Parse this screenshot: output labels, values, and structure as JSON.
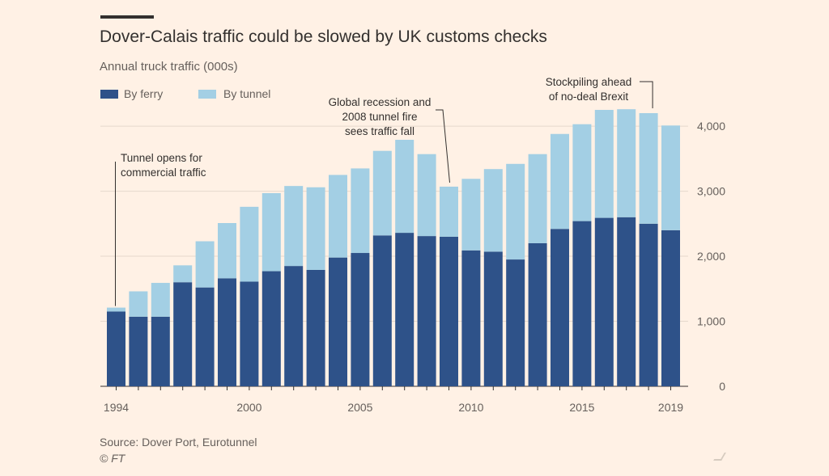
{
  "header": {
    "title": "Dover-Calais traffic could be slowed by UK customs checks",
    "subtitle": "Annual truck traffic (000s)"
  },
  "footer": {
    "source": "Source: Dover Port, Eurotunnel",
    "credit": "© FT"
  },
  "colors": {
    "background": "#fff1e5",
    "ferry": "#2e5289",
    "tunnel": "#a3cfe4",
    "text": "#33302e",
    "grid": "#e5d8cc"
  },
  "chart_data": {
    "type": "bar",
    "stacked": true,
    "ylim": [
      0,
      4200
    ],
    "yticks": [
      0,
      1000,
      2000,
      3000,
      4000
    ],
    "ytick_labels": [
      "0",
      "1,000",
      "2,000",
      "3,000",
      "4,000"
    ],
    "y_axis_side": "right",
    "grid": true,
    "legend_position": "top-left",
    "xtick_labels": [
      "1994",
      "2000",
      "2005",
      "2010",
      "2015",
      "2019"
    ],
    "xtick_years": [
      1994,
      2000,
      2005,
      2010,
      2015,
      2019
    ],
    "categories": [
      1994,
      1995,
      1996,
      1997,
      1998,
      1999,
      2000,
      2001,
      2002,
      2003,
      2004,
      2005,
      2006,
      2007,
      2008,
      2009,
      2010,
      2011,
      2012,
      2013,
      2014,
      2015,
      2016,
      2017,
      2018,
      2019
    ],
    "series": [
      {
        "name": "By ferry",
        "key": "ferry",
        "values": [
          1150,
          1070,
          1070,
          1600,
          1520,
          1660,
          1610,
          1770,
          1850,
          1790,
          1980,
          2050,
          2320,
          2360,
          2310,
          2300,
          2090,
          2070,
          1950,
          2200,
          2420,
          2540,
          2590,
          2600,
          2500,
          2400
        ]
      },
      {
        "name": "By tunnel",
        "key": "tunnel",
        "values": [
          60,
          390,
          520,
          260,
          710,
          850,
          1150,
          1200,
          1230,
          1270,
          1270,
          1300,
          1300,
          1430,
          1260,
          770,
          1100,
          1270,
          1470,
          1370,
          1460,
          1490,
          1660,
          1660,
          1700,
          1610
        ]
      }
    ],
    "annotations": [
      {
        "year": 1994,
        "lines": [
          "Tunnel opens for",
          "commercial traffic"
        ]
      },
      {
        "year": 2009,
        "lines": [
          "Global recession and",
          "2008 tunnel fire",
          "sees traffic fall"
        ]
      },
      {
        "year": 2018,
        "lines": [
          "Stockpiling ahead",
          "of no-deal Brexit"
        ]
      }
    ]
  }
}
